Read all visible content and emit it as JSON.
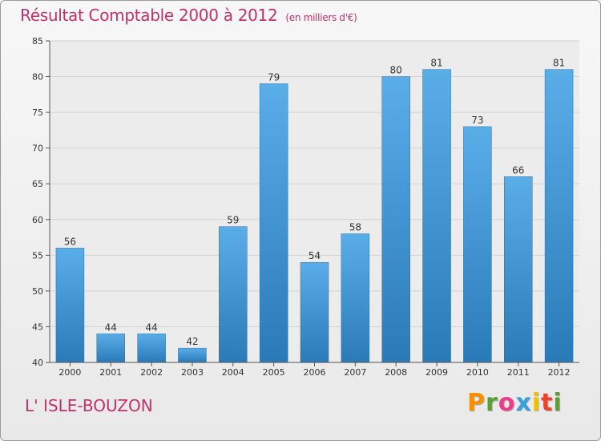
{
  "title": "Résultat Comptable 2000 à 2012",
  "subtitle": "(en milliers d'€)",
  "town": "L' ISLE-BOUZON",
  "logo": "Proxiti",
  "colors": {
    "title": "#c0336a",
    "bar_top": "#5aaee8",
    "bar_bottom": "#2a7ab8"
  },
  "chart_data": {
    "type": "bar",
    "title": "Résultat Comptable 2000 à 2012",
    "subtitle": "(en milliers d'€)",
    "categories": [
      "2000",
      "2001",
      "2002",
      "2003",
      "2004",
      "2005",
      "2006",
      "2007",
      "2008",
      "2009",
      "2010",
      "2011",
      "2012"
    ],
    "values": [
      56,
      44,
      44,
      42,
      59,
      79,
      54,
      58,
      80,
      81,
      73,
      66,
      81
    ],
    "xlabel": "",
    "ylabel": "",
    "ylim": [
      40,
      85
    ],
    "yticks": [
      40,
      45,
      50,
      55,
      60,
      65,
      70,
      75,
      80,
      85
    ],
    "grid": true
  }
}
